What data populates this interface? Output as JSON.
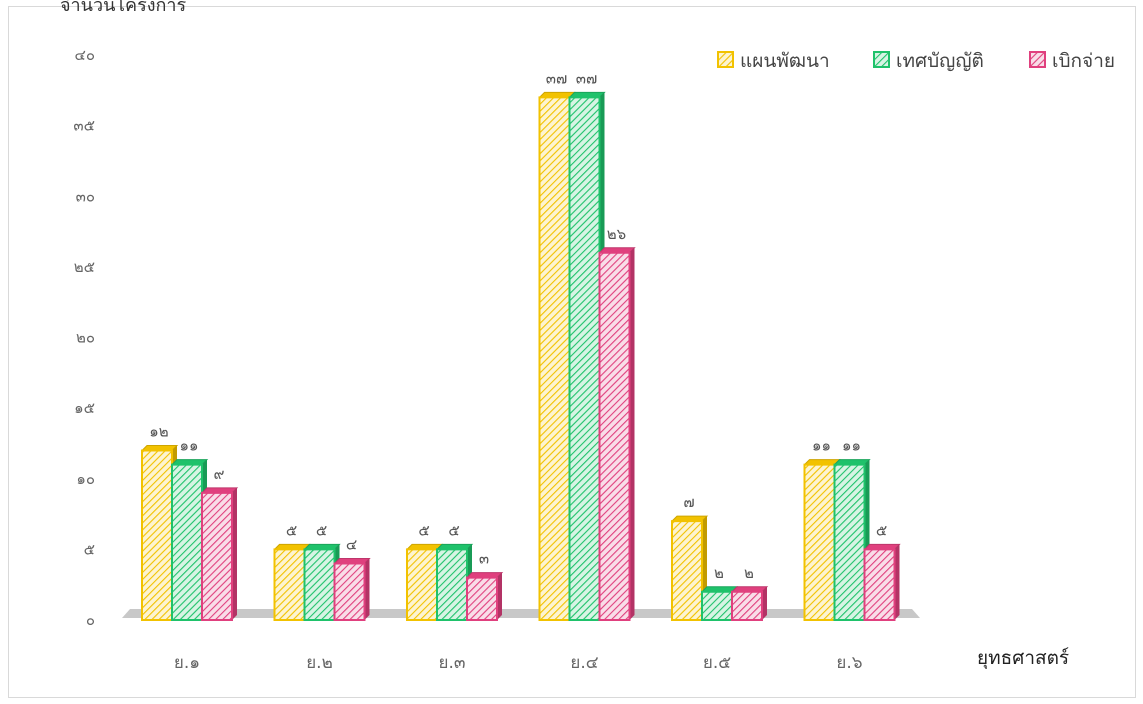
{
  "chart_data": {
    "type": "bar",
    "ylabel": "จำนวนโครงการ",
    "xlabel": "ยุทธศาสตร์",
    "categories": [
      "ย.๑",
      "ย.๒",
      "ย.๓",
      "ย.๔",
      "ย.๕",
      "ย.๖"
    ],
    "ylim": [
      0,
      40
    ],
    "yticks": [
      0,
      5,
      10,
      15,
      20,
      25,
      30,
      35,
      40
    ],
    "ytick_labels": [
      "๐",
      "๕",
      "๑๐",
      "๑๕",
      "๒๐",
      "๒๕",
      "๓๐",
      "๓๕",
      "๔๐"
    ],
    "grid": false,
    "legend": "top-right",
    "series": [
      {
        "name": "แผนพัฒนา",
        "color": "#f2c200",
        "values": [
          12,
          5,
          5,
          37,
          7,
          11
        ],
        "labels": [
          "๑๒",
          "๕",
          "๕",
          "๓๗",
          "๗",
          "๑๑"
        ]
      },
      {
        "name": "เทศบัญญัติ",
        "color": "#1fc26b",
        "values": [
          11,
          5,
          5,
          37,
          2,
          11
        ],
        "labels": [
          "๑๑",
          "๕",
          "๕",
          "๓๗",
          "๒",
          "๑๑"
        ]
      },
      {
        "name": "เบิกจ่าย",
        "color": "#e0407e",
        "values": [
          9,
          4,
          3,
          26,
          2,
          5
        ],
        "labels": [
          "๙",
          "๔",
          "๓",
          "๒๖",
          "๒",
          "๕"
        ]
      }
    ]
  }
}
